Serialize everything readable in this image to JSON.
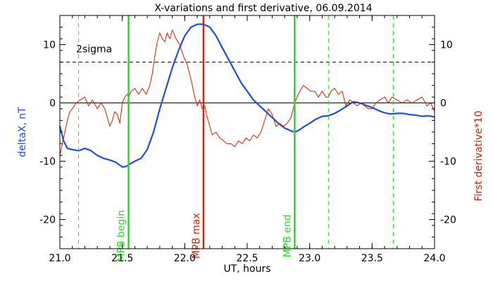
{
  "chart_data": {
    "type": "line",
    "title": "X-variations and first derivative, 06.09.2014",
    "xlabel": "UT, hours",
    "ylabel_left": "deltaX, nT",
    "ylabel_right": "First derivative*10",
    "xlim": [
      21.0,
      24.0
    ],
    "ylim": [
      -25,
      15
    ],
    "x_ticks": [
      21.0,
      21.5,
      22.0,
      22.5,
      23.0,
      23.5,
      24.0
    ],
    "x_tick_labels": [
      "21.0",
      "21.5",
      "22.0",
      "22.5",
      "23.0",
      "23.5",
      "24.0"
    ],
    "y_ticks": [
      10,
      0,
      -10,
      -20
    ],
    "y_tick_labels": [
      "10",
      "0",
      "-10",
      "-20"
    ],
    "colors": {
      "deltaX": "#1e4fd8",
      "derivative": "#cc2200",
      "mpb": "#22dd22",
      "mpb_max": "#dd2200"
    },
    "series": [
      {
        "key": "deltaX",
        "x": [
          21.0,
          21.03,
          21.06,
          21.1,
          21.15,
          21.2,
          21.25,
          21.3,
          21.35,
          21.4,
          21.45,
          21.5,
          21.53,
          21.56,
          21.6,
          21.65,
          21.7,
          21.75,
          21.8,
          21.85,
          21.9,
          21.95,
          22.0,
          22.05,
          22.1,
          22.15,
          22.2,
          22.25,
          22.3,
          22.35,
          22.4,
          22.45,
          22.5,
          22.55,
          22.6,
          22.65,
          22.7,
          22.75,
          22.8,
          22.85,
          22.88,
          22.92,
          22.96,
          23.0,
          23.05,
          23.1,
          23.15,
          23.2,
          23.25,
          23.3,
          23.35,
          23.4,
          23.45,
          23.5,
          23.55,
          23.6,
          23.65,
          23.7,
          23.75,
          23.8,
          23.85,
          23.9,
          23.95,
          24.0
        ],
        "values": [
          -4.0,
          -6.5,
          -7.8,
          -8.0,
          -8.2,
          -7.8,
          -8.2,
          -9.0,
          -9.5,
          -9.8,
          -10.2,
          -11.0,
          -10.9,
          -10.5,
          -10.0,
          -9.5,
          -8.0,
          -5.0,
          -1.0,
          2.5,
          6.0,
          9.0,
          11.5,
          13.0,
          13.5,
          13.5,
          13.0,
          11.5,
          9.5,
          7.5,
          5.5,
          3.5,
          2.0,
          0.5,
          -0.5,
          -1.5,
          -2.5,
          -3.5,
          -4.3,
          -4.8,
          -5.0,
          -4.6,
          -4.0,
          -3.5,
          -2.8,
          -2.3,
          -2.2,
          -1.8,
          -1.2,
          -0.5,
          0.2,
          0.0,
          -0.4,
          -0.8,
          -1.3,
          -1.7,
          -1.9,
          -1.8,
          -1.8,
          -2.0,
          -2.1,
          -2.3,
          -2.2,
          -2.4
        ]
      },
      {
        "key": "derivative",
        "x": [
          21.0,
          21.02,
          21.04,
          21.06,
          21.08,
          21.1,
          21.13,
          21.16,
          21.2,
          21.23,
          21.26,
          21.3,
          21.33,
          21.36,
          21.38,
          21.4,
          21.42,
          21.44,
          21.46,
          21.48,
          21.5,
          21.52,
          21.54,
          21.55,
          21.57,
          21.6,
          21.63,
          21.66,
          21.69,
          21.72,
          21.74,
          21.76,
          21.78,
          21.8,
          21.82,
          21.84,
          21.86,
          21.88,
          21.9,
          21.93,
          21.96,
          21.99,
          22.02,
          22.05,
          22.08,
          22.1,
          22.12,
          22.14,
          22.16,
          22.18,
          22.2,
          22.22,
          22.25,
          22.28,
          22.31,
          22.34,
          22.37,
          22.4,
          22.43,
          22.46,
          22.49,
          22.52,
          22.55,
          22.58,
          22.61,
          22.64,
          22.67,
          22.7,
          22.73,
          22.76,
          22.79,
          22.82,
          22.85,
          22.88,
          22.9,
          22.92,
          22.95,
          22.98,
          23.01,
          23.04,
          23.07,
          23.1,
          23.13,
          23.15,
          23.17,
          23.2,
          23.23,
          23.26,
          23.29,
          23.32,
          23.35,
          23.38,
          23.41,
          23.44,
          23.47,
          23.5,
          23.53,
          23.56,
          23.6,
          23.63,
          23.66,
          23.7,
          23.74,
          23.78,
          23.82,
          23.86,
          23.9,
          23.94,
          23.97,
          24.0
        ],
        "values": [
          -9.0,
          -7.0,
          -5.0,
          -3.0,
          -1.5,
          -1.0,
          0.0,
          0.5,
          1.0,
          -0.5,
          0.5,
          -1.0,
          0.0,
          -1.0,
          -2.5,
          -4.0,
          -3.0,
          -1.5,
          -2.0,
          -3.5,
          0.0,
          1.0,
          1.5,
          1.0,
          2.0,
          2.5,
          1.5,
          2.5,
          1.5,
          3.0,
          5.0,
          8.0,
          10.5,
          12.0,
          11.0,
          10.5,
          12.0,
          11.0,
          12.5,
          11.0,
          10.0,
          8.0,
          6.5,
          4.0,
          1.0,
          -0.5,
          0.5,
          -1.0,
          -0.5,
          -2.5,
          -4.0,
          -5.5,
          -5.0,
          -6.0,
          -6.5,
          -7.0,
          -7.0,
          -7.5,
          -6.5,
          -7.0,
          -6.0,
          -6.5,
          -5.5,
          -6.0,
          -5.0,
          -3.0,
          -1.0,
          -2.0,
          -4.0,
          -3.5,
          -4.0,
          -3.5,
          -2.5,
          0.0,
          1.0,
          2.0,
          3.0,
          2.5,
          2.0,
          2.0,
          1.0,
          2.0,
          1.0,
          1.0,
          2.0,
          2.5,
          1.5,
          2.0,
          -0.5,
          0.5,
          0.0,
          -0.5,
          0.0,
          -0.5,
          -1.0,
          -1.0,
          0.0,
          0.5,
          1.0,
          0.0,
          1.0,
          0.5,
          0.0,
          0.5,
          0.0,
          0.5,
          1.0,
          -0.5,
          0.0,
          -1.5
        ]
      }
    ],
    "hlines": [
      {
        "key": "two_sigma",
        "y": 7.0,
        "style": "dashed",
        "label": "2sigma",
        "label_x": 21.13,
        "label_y": 8.7
      },
      {
        "key": "zero",
        "y": 0.0,
        "style": "solid"
      }
    ],
    "vlines": [
      {
        "key": "mpb_begin",
        "x": 21.55,
        "color_key": "mpb",
        "style": "solid",
        "label": "MPB begin"
      },
      {
        "key": "mpb_max",
        "x": 22.15,
        "color_key": "mpb_max",
        "style": "solid",
        "label": "MPB max"
      },
      {
        "key": "mpb_end",
        "x": 22.88,
        "color_key": "mpb",
        "style": "solid",
        "label": "MPB end"
      },
      {
        "key": "dash_1",
        "x": 21.15,
        "color_key": "mpb",
        "style": "dashed"
      },
      {
        "key": "dash_2",
        "x": 23.15,
        "color_key": "mpb",
        "style": "dashed"
      },
      {
        "key": "dash_3",
        "x": 23.67,
        "color_key": "mpb",
        "style": "dashed"
      }
    ],
    "vline_label_y": -22.8
  }
}
